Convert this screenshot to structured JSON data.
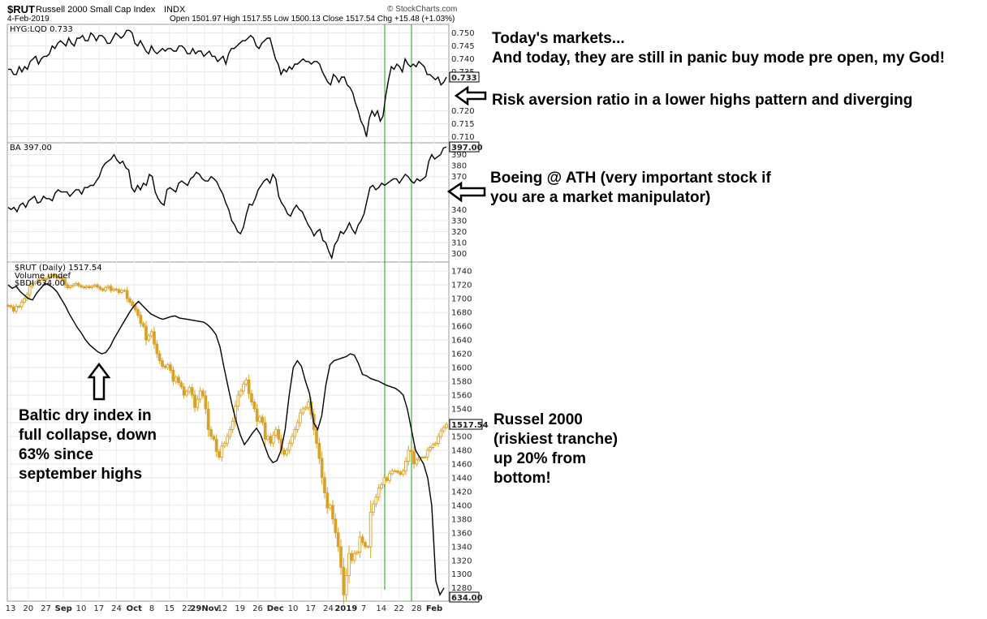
{
  "header": {
    "symbol": "$RUT",
    "name": "Russell 2000 Small Cap Index",
    "exchange": "INDX",
    "date": "4-Feb-2019",
    "source": "© StockCharts.com",
    "quote": "Open 1501.97   High 1517.55   Low 1500.13   Close 1517.54   Chg +15.48 (+1.03%)"
  },
  "annotations": {
    "markets": "Today's markets...\nAnd today, they are still in panic buy mode pre open, my God!",
    "risk": "Risk aversion ratio in a lower highs pattern and diverging",
    "boeing": "Boeing @ ATH (very important stock if\nyou are a market manipulator)",
    "baltic": "Baltic dry index in\nfull collapse, down\n63% since\nseptember highs",
    "russell": "Russel 2000\n(riskiest tranche)\nup 20% from\nbottom!"
  },
  "chart_data": [
    {
      "type": "line",
      "legend": "HYG:LQD 0.733",
      "ylim": [
        0.708,
        0.753
      ],
      "yticks": [
        0.75,
        0.745,
        0.74,
        0.735,
        0.73,
        0.725,
        0.72,
        0.715,
        0.71
      ],
      "ytick_labels": [
        "0.750",
        "0.745",
        "0.740",
        "0.735",
        "",
        "",
        "0.720",
        "0.715",
        "0.710"
      ],
      "last_label": "0.733",
      "values": [
        0.736,
        0.736,
        0.734,
        0.734,
        0.737,
        0.735,
        0.737,
        0.736,
        0.739,
        0.74,
        0.741,
        0.738,
        0.74,
        0.741,
        0.741,
        0.742,
        0.745,
        0.744,
        0.746,
        0.747,
        0.746,
        0.745,
        0.748,
        0.746,
        0.745,
        0.748,
        0.748,
        0.749,
        0.747,
        0.747,
        0.75,
        0.749,
        0.747,
        0.749,
        0.749,
        0.748,
        0.746,
        0.746,
        0.748,
        0.75,
        0.749,
        0.748,
        0.749,
        0.751,
        0.751,
        0.75,
        0.746,
        0.745,
        0.747,
        0.745,
        0.743,
        0.742,
        0.745,
        0.743,
        0.742,
        0.743,
        0.744,
        0.743,
        0.744,
        0.744,
        0.743,
        0.743,
        0.745,
        0.745,
        0.744,
        0.742,
        0.742,
        0.744,
        0.742,
        0.743,
        0.743,
        0.741,
        0.742,
        0.743,
        0.741,
        0.741,
        0.739,
        0.74,
        0.741,
        0.738,
        0.742,
        0.744,
        0.744,
        0.745,
        0.746,
        0.747,
        0.747,
        0.748,
        0.749,
        0.748,
        0.745,
        0.744,
        0.746,
        0.747,
        0.748,
        0.748,
        0.744,
        0.74,
        0.738,
        0.734,
        0.736,
        0.735,
        0.737,
        0.736,
        0.738,
        0.738,
        0.739,
        0.74,
        0.739,
        0.739,
        0.738,
        0.739,
        0.739,
        0.738,
        0.735,
        0.733,
        0.731,
        0.73,
        0.734,
        0.733,
        0.731,
        0.733,
        0.733,
        0.73,
        0.729,
        0.727,
        0.723,
        0.72,
        0.716,
        0.714,
        0.71,
        0.717,
        0.72,
        0.718,
        0.72,
        0.716,
        0.718,
        0.726,
        0.732,
        0.737,
        0.736,
        0.738,
        0.737,
        0.735,
        0.74,
        0.738,
        0.737,
        0.738,
        0.737,
        0.739,
        0.738,
        0.737,
        0.734,
        0.734,
        0.733,
        0.732,
        0.733,
        0.73,
        0.731,
        0.733
      ]
    },
    {
      "type": "line",
      "legend": "BA 397.00",
      "ylim": [
        293,
        400
      ],
      "yticks": [
        390,
        380,
        370,
        360,
        350,
        340,
        330,
        320,
        310,
        300
      ],
      "ytick_labels": [
        "390",
        "380",
        "370",
        "",
        "",
        "340",
        "330",
        "320",
        "310",
        "300"
      ],
      "last_label": "397.00",
      "values": [
        342,
        340,
        342,
        338,
        344,
        346,
        342,
        348,
        350,
        352,
        346,
        347,
        352,
        350,
        350,
        348,
        355,
        358,
        356,
        356,
        356,
        352,
        355,
        358,
        358,
        354,
        360,
        360,
        362,
        362,
        366,
        370,
        378,
        382,
        384,
        386,
        390,
        385,
        382,
        384,
        378,
        376,
        360,
        356,
        362,
        358,
        364,
        362,
        372,
        370,
        356,
        350,
        346,
        344,
        358,
        360,
        358,
        356,
        364,
        366,
        364,
        362,
        368,
        370,
        374,
        372,
        368,
        366,
        366,
        370,
        368,
        365,
        359,
        354,
        346,
        340,
        330,
        326,
        320,
        318,
        324,
        336,
        345,
        344,
        350,
        358,
        362,
        366,
        368,
        364,
        372,
        368,
        352,
        346,
        342,
        336,
        334,
        340,
        344,
        340,
        338,
        332,
        326,
        322,
        316,
        320,
        322,
        312,
        310,
        302,
        296,
        308,
        312,
        320,
        318,
        322,
        328,
        322,
        318,
        326,
        330,
        336,
        348,
        360,
        362,
        358,
        360,
        364,
        362,
        364,
        366,
        368,
        368,
        364,
        368,
        372,
        370,
        366,
        364,
        368,
        366,
        368,
        370,
        384,
        390,
        386,
        388,
        390,
        396,
        397
      ]
    },
    {
      "type": "candlestick",
      "legend": [
        "$RUT (Daily) 1517.54",
        "Volume undef",
        "$BDI 634.00"
      ],
      "ylim": [
        1262,
        1752
      ],
      "yticks": [
        1740,
        1720,
        1700,
        1680,
        1660,
        1640,
        1620,
        1600,
        1580,
        1560,
        1540,
        1520,
        1500,
        1480,
        1460,
        1440,
        1420,
        1400,
        1380,
        1360,
        1340,
        1320,
        1300,
        1280
      ],
      "last_label": "1517.54",
      "bdi_last_label": "634.00",
      "xtick_labels": [
        "13",
        "20",
        "27",
        "Sep",
        "10",
        "17",
        "24",
        "Oct",
        "8",
        "15",
        "22",
        "29Nov",
        "12",
        "19",
        "26",
        "Dec",
        "10",
        "17",
        "24",
        "2019",
        "7",
        "14",
        "22",
        "28",
        "Feb"
      ],
      "close": [
        1690,
        1688,
        1682,
        1689,
        1688,
        1695,
        1700,
        1706,
        1718,
        1722,
        1724,
        1727,
        1730,
        1728,
        1729,
        1732,
        1735,
        1733,
        1730,
        1731,
        1728,
        1720,
        1716,
        1718,
        1720,
        1722,
        1719,
        1717,
        1716,
        1718,
        1716,
        1718,
        1720,
        1717,
        1714,
        1712,
        1716,
        1718,
        1712,
        1714,
        1713,
        1709,
        1712,
        1712,
        1700,
        1695,
        1690,
        1684,
        1676,
        1664,
        1660,
        1640,
        1646,
        1652,
        1634,
        1620,
        1610,
        1602,
        1600,
        1604,
        1596,
        1580,
        1586,
        1578,
        1572,
        1560,
        1565,
        1571,
        1560,
        1542,
        1554,
        1566,
        1559,
        1540,
        1510,
        1500,
        1496,
        1478,
        1470,
        1486,
        1490,
        1500,
        1510,
        1522,
        1544,
        1560,
        1566,
        1576,
        1582,
        1562,
        1550,
        1540,
        1522,
        1528,
        1520,
        1496,
        1500,
        1490,
        1502,
        1510,
        1496,
        1480,
        1474,
        1480,
        1490,
        1500,
        1510,
        1520,
        1534,
        1540,
        1542,
        1550,
        1532,
        1510,
        1490,
        1468,
        1440,
        1418,
        1396,
        1400,
        1380,
        1360,
        1340,
        1310,
        1270,
        1298,
        1330,
        1320,
        1330,
        1332,
        1354,
        1346,
        1340,
        1340,
        1390,
        1402,
        1412,
        1425,
        1430,
        1440,
        1436,
        1446,
        1450,
        1450,
        1448,
        1445,
        1450,
        1464,
        1480,
        1478,
        1460,
        1466,
        1470,
        1470,
        1470,
        1480,
        1484,
        1488,
        1490,
        1500,
        1508,
        1513,
        1517.54
      ],
      "bdi_close": [
        1720,
        1715,
        1718,
        1710,
        1705,
        1700,
        1698,
        1708,
        1715,
        1722,
        1720,
        1716,
        1710,
        1700,
        1690,
        1678,
        1668,
        1658,
        1650,
        1640,
        1633,
        1628,
        1623,
        1620,
        1622,
        1630,
        1642,
        1652,
        1662,
        1672,
        1682,
        1690,
        1696,
        1690,
        1684,
        1678,
        1675,
        1672,
        1670,
        1672,
        1674,
        1675,
        1672,
        1671,
        1670,
        1669,
        1668,
        1667,
        1666,
        1662,
        1656,
        1648,
        1630,
        1600,
        1572,
        1545,
        1522,
        1502,
        1488,
        1496,
        1505,
        1512,
        1502,
        1486,
        1470,
        1462,
        1465,
        1480,
        1510,
        1560,
        1600,
        1610,
        1602,
        1580,
        1562,
        1520,
        1510,
        1530,
        1575,
        1604,
        1610,
        1612,
        1614,
        1616,
        1620,
        1618,
        1606,
        1590,
        1588,
        1584,
        1582,
        1580,
        1577,
        1574,
        1572,
        1570,
        1566,
        1560,
        1540,
        1510,
        1480,
        1470,
        1460,
        1440,
        1400,
        1290,
        1270,
        1280
      ]
    }
  ]
}
